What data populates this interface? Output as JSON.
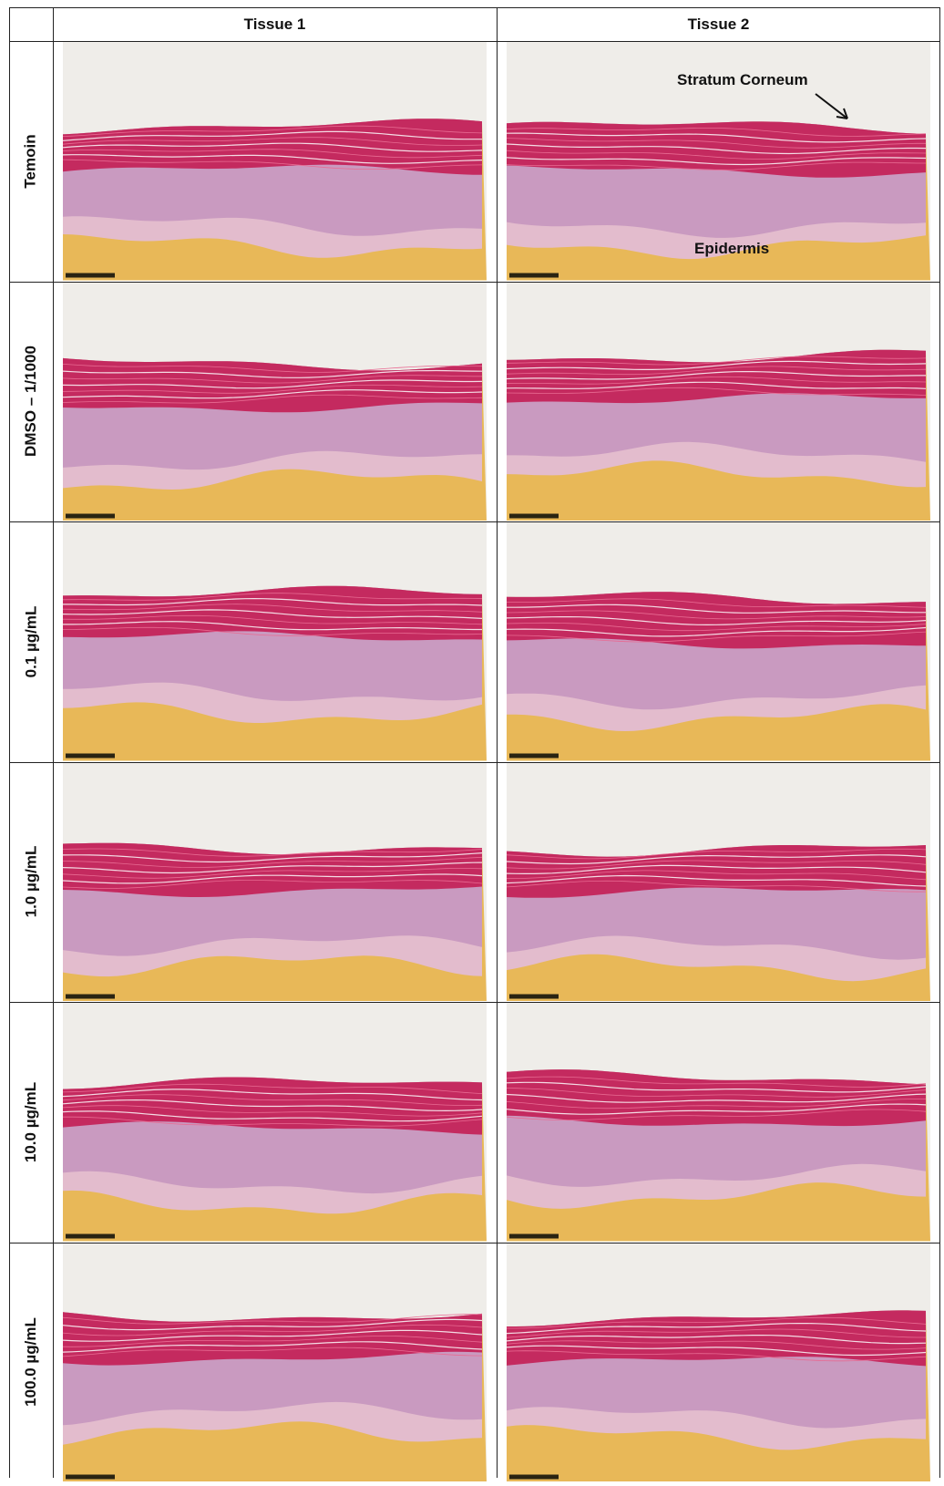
{
  "header": {
    "columns": [
      "Tissue 1",
      "Tissue 2"
    ]
  },
  "rows": [
    {
      "label": "Temoin"
    },
    {
      "label": "DMSO – 1/1000"
    },
    {
      "label": "0.1 µg/mL"
    },
    {
      "label": "1.0 µg/mL"
    },
    {
      "label": "10.0 µg/mL"
    },
    {
      "label": "100.0 µg/mL"
    }
  ],
  "annotations": {
    "stratum_corneum": "Stratum Corneum",
    "epidermis": "Epidermis"
  }
}
